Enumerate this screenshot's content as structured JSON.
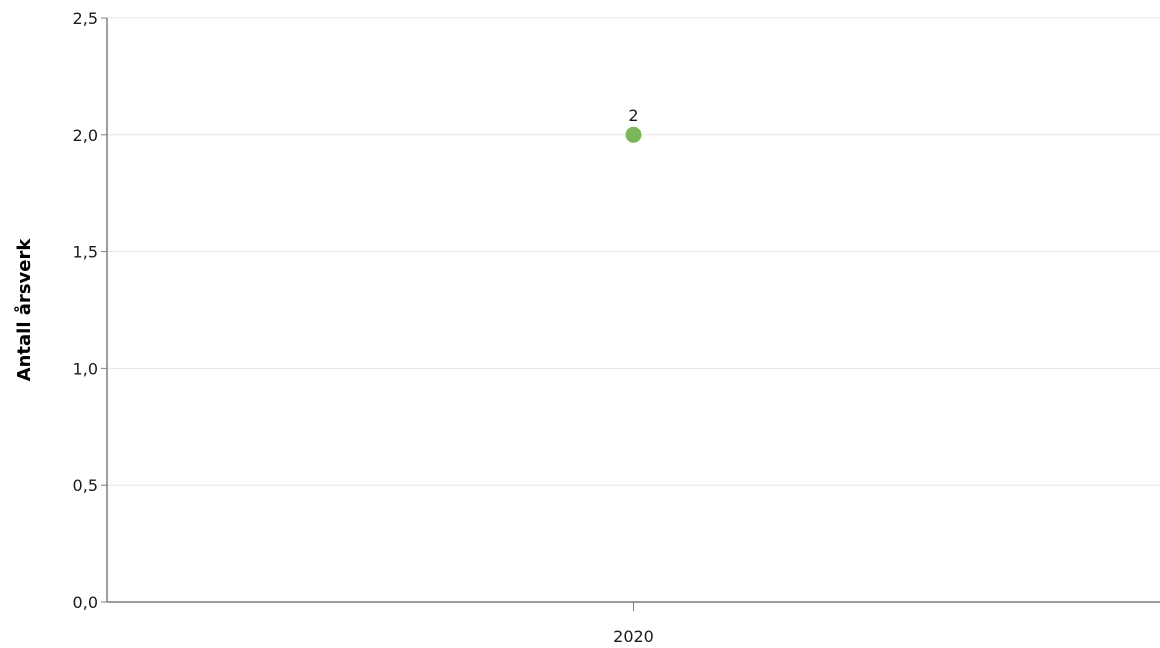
{
  "chart_data": {
    "type": "scatter",
    "categories": [
      "2020"
    ],
    "series": [
      {
        "values": [
          2
        ],
        "data_labels": [
          "2"
        ]
      }
    ],
    "title": "",
    "xlabel": "",
    "ylabel": "Antall årsverk",
    "ylim": [
      0,
      2.5
    ],
    "yticks": [
      0,
      0.5,
      1,
      1.5,
      2,
      2.5
    ],
    "ytick_labels": [
      "0,0",
      "0,5",
      "1,0",
      "1,5",
      "2,0",
      "2,5"
    ],
    "grid": true,
    "legend": "none",
    "colors": {
      "point": "#7cb65a",
      "grid": "#e6e6e6",
      "axis": "#7f7f7f"
    }
  }
}
